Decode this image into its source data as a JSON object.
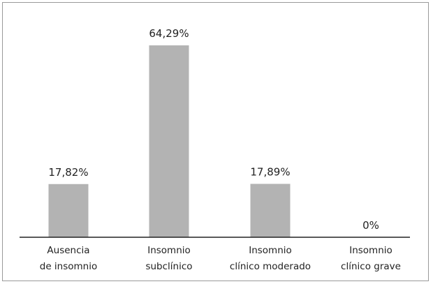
{
  "chart_data": {
    "type": "bar",
    "categories": [
      [
        "Ausencia",
        "de insomnio"
      ],
      [
        "Insomnio",
        "subclínico"
      ],
      [
        "Insomnio",
        "clínico moderado"
      ],
      [
        "Insomnio",
        "clínico grave"
      ]
    ],
    "values": [
      17.82,
      64.29,
      17.89,
      0
    ],
    "data_labels": [
      "17,82%",
      "64,29%",
      "17,89%",
      "0%"
    ],
    "ylim": [
      0,
      70
    ],
    "grid": false,
    "colors": {
      "bar": "#b3b3b3",
      "axis": "#222222",
      "text": "#222222"
    }
  }
}
